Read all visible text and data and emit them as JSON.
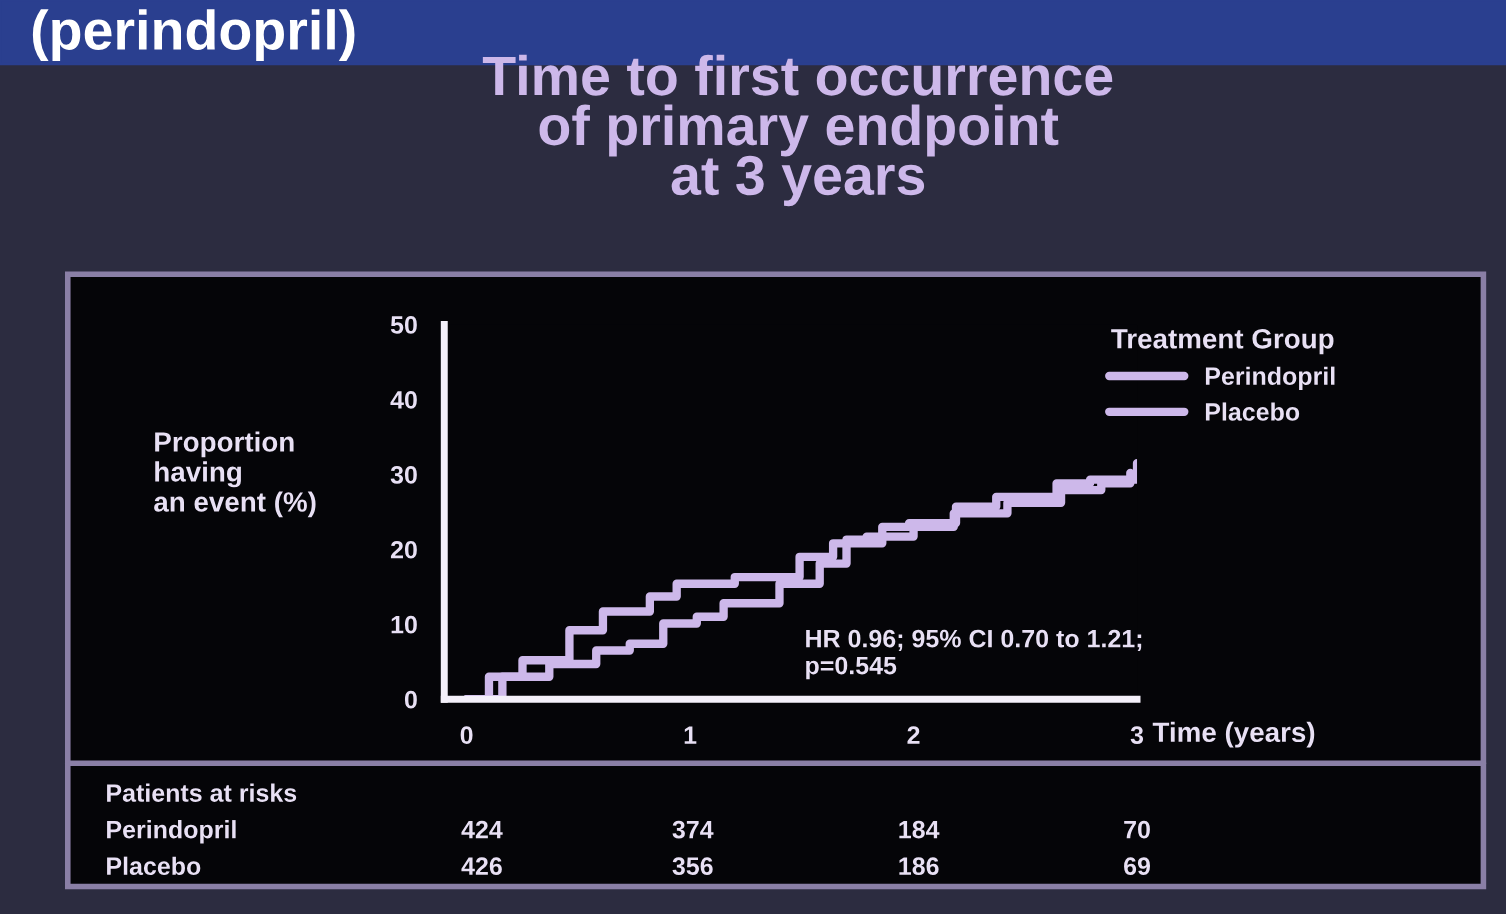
{
  "chart_data": {
    "type": "step",
    "title": "Time to first occurrence\nof primary endpoint\nat 3 years",
    "subtitle": "(perindopril)",
    "xlabel": "Time (years)",
    "ylabel": "Proportion\nhaving\nan event (%)",
    "legend_title": "Treatment Group",
    "legend": "top right",
    "xlim": [
      -0.1,
      3
    ],
    "xticks": [
      0,
      1,
      2,
      3
    ],
    "ylim": [
      0,
      50
    ],
    "yticks": [
      0,
      10,
      20,
      30,
      40,
      50
    ],
    "grid": false,
    "series": [
      {
        "name": "Perindopril",
        "color": "#cdb8ea",
        "x": [
          0,
          0.16,
          0.37,
          0.58,
          0.73,
          0.88,
          1.03,
          1.15,
          1.4,
          1.58,
          1.7,
          1.79,
          2.0,
          2.18,
          2.42,
          2.66,
          2.84,
          2.97
        ],
        "values": [
          0,
          3,
          4.7,
          6.5,
          7.4,
          10.1,
          11,
          12.8,
          15.4,
          18.1,
          21.3,
          21.7,
          23,
          24.8,
          26.2,
          27.9,
          28.8,
          30.2
        ]
      },
      {
        "name": "Placebo",
        "color": "#cdb8ea",
        "x": [
          0,
          0.1,
          0.25,
          0.46,
          0.61,
          0.82,
          0.94,
          1.2,
          1.49,
          1.64,
          1.86,
          1.98,
          2.19,
          2.37,
          2.64,
          2.79,
          3.0
        ],
        "values": [
          0,
          3,
          5.2,
          9.2,
          11.7,
          13.7,
          15.4,
          16.3,
          19,
          20.8,
          23,
          23.5,
          25.7,
          27,
          28.8,
          29.3,
          31.5
        ]
      }
    ],
    "annotations": [
      "HR 0.96; 95% CI 0.70 to 1.21;\np=0.545",
      "Patients at risks",
      "Perindopril",
      "424",
      "374",
      "184",
      "70",
      "Placebo",
      "426",
      "356",
      "186",
      "69"
    ]
  }
}
